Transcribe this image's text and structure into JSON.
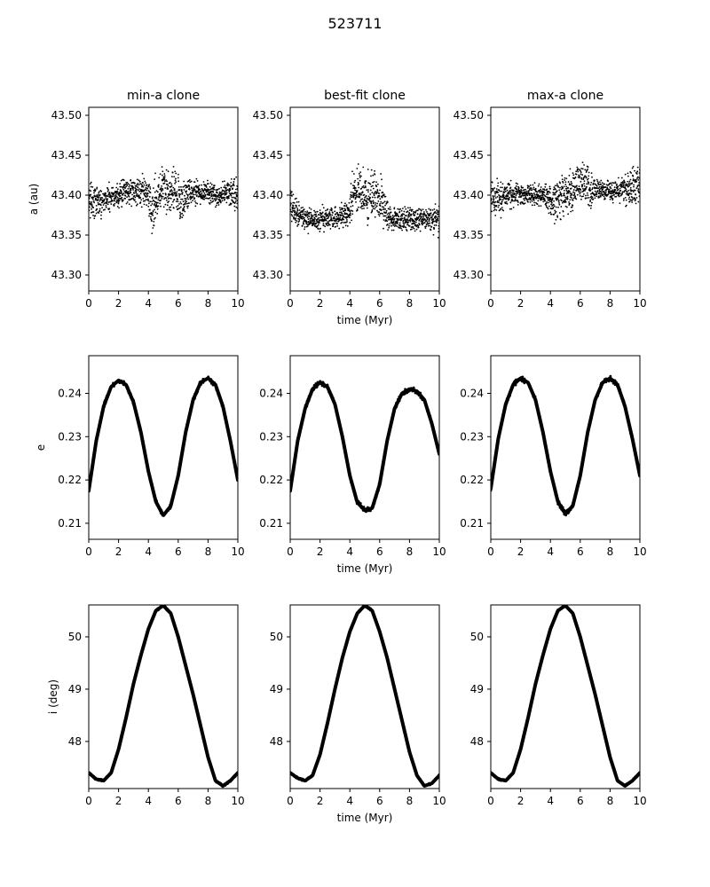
{
  "figure": {
    "title": "523711",
    "columns": [
      "min-a clone",
      "best-fit clone",
      "max-a clone"
    ],
    "xlabel": "time (Myr)",
    "ylabels": [
      "a (au)",
      "e",
      "i (deg)"
    ]
  },
  "colors": {
    "points": "#000000",
    "axes": "#000000",
    "background": "#ffffff"
  },
  "chart_data": [
    {
      "type": "scatter",
      "row": 0,
      "col": 0,
      "title": "min-a clone",
      "xlabel": "",
      "ylabel": "a (au)",
      "xlim": [
        0,
        10
      ],
      "ylim": [
        43.28,
        43.51
      ],
      "xticks": [
        0,
        2,
        4,
        6,
        8,
        10
      ],
      "yticks": [
        43.3,
        43.35,
        43.4,
        43.45,
        43.5
      ],
      "ytick_labels": [
        "43.30",
        "43.35",
        "43.40",
        "43.45",
        "43.50"
      ],
      "grid": false,
      "series": [
        {
          "x": [
            0,
            0.5,
            1,
            1.5,
            2,
            2.5,
            3,
            3.5,
            3.9,
            4.2,
            4.6,
            5.0,
            5.4,
            5.8,
            6.2,
            6.6,
            7,
            7.5,
            8,
            8.5,
            9,
            9.5,
            10
          ],
          "y": [
            43.395,
            43.39,
            43.395,
            43.398,
            43.4,
            43.405,
            43.405,
            43.405,
            43.4,
            43.38,
            43.4,
            43.41,
            43.4,
            43.41,
            43.39,
            43.4,
            43.405,
            43.405,
            43.403,
            43.4,
            43.402,
            43.405,
            43.405
          ],
          "spread": [
            0.03,
            0.03,
            0.025,
            0.025,
            0.025,
            0.025,
            0.025,
            0.025,
            0.03,
            0.04,
            0.04,
            0.04,
            0.04,
            0.04,
            0.04,
            0.03,
            0.025,
            0.02,
            0.02,
            0.02,
            0.02,
            0.025,
            0.03
          ]
        }
      ]
    },
    {
      "type": "scatter",
      "row": 0,
      "col": 1,
      "title": "best-fit clone",
      "xlabel": "time (Myr)",
      "ylabel": "",
      "xlim": [
        0,
        10
      ],
      "ylim": [
        43.28,
        43.51
      ],
      "xticks": [
        0,
        2,
        4,
        6,
        8,
        10
      ],
      "yticks": [
        43.3,
        43.35,
        43.4,
        43.45,
        43.5
      ],
      "ytick_labels": [
        "43.30",
        "43.35",
        "43.40",
        "43.45",
        "43.50"
      ],
      "grid": false,
      "series": [
        {
          "x": [
            0,
            0.5,
            1,
            1.5,
            2,
            2.5,
            3,
            3.5,
            3.9,
            4.2,
            4.6,
            5.0,
            5.4,
            5.8,
            6.2,
            6.6,
            7,
            7.5,
            8,
            8.5,
            9,
            9.5,
            10
          ],
          "y": [
            43.39,
            43.375,
            43.37,
            43.368,
            43.37,
            43.372,
            43.372,
            43.372,
            43.375,
            43.4,
            43.405,
            43.4,
            43.395,
            43.4,
            43.39,
            43.372,
            43.37,
            43.37,
            43.37,
            43.368,
            43.37,
            43.37,
            43.37
          ],
          "spread": [
            0.03,
            0.02,
            0.02,
            0.02,
            0.02,
            0.02,
            0.02,
            0.02,
            0.025,
            0.045,
            0.045,
            0.045,
            0.045,
            0.045,
            0.04,
            0.02,
            0.02,
            0.02,
            0.02,
            0.02,
            0.02,
            0.02,
            0.03
          ]
        }
      ]
    },
    {
      "type": "scatter",
      "row": 0,
      "col": 2,
      "title": "max-a clone",
      "xlabel": "",
      "ylabel": "",
      "xlim": [
        0,
        10
      ],
      "ylim": [
        43.28,
        43.51
      ],
      "xticks": [
        0,
        2,
        4,
        6,
        8,
        10
      ],
      "yticks": [
        43.3,
        43.35,
        43.4,
        43.45,
        43.5
      ],
      "ytick_labels": [
        "43.30",
        "43.35",
        "43.40",
        "43.45",
        "43.50"
      ],
      "grid": false,
      "series": [
        {
          "x": [
            0,
            0.5,
            1,
            1.5,
            2,
            2.5,
            3,
            3.5,
            3.9,
            4.2,
            4.6,
            5.0,
            5.4,
            5.8,
            6.2,
            6.6,
            7,
            7.5,
            8,
            8.5,
            9,
            9.5,
            10
          ],
          "y": [
            43.4,
            43.395,
            43.4,
            43.4,
            43.4,
            43.4,
            43.4,
            43.4,
            43.395,
            43.39,
            43.395,
            43.4,
            43.405,
            43.41,
            43.42,
            43.41,
            43.405,
            43.405,
            43.405,
            43.405,
            43.408,
            43.41,
            43.41
          ],
          "spread": [
            0.03,
            0.03,
            0.025,
            0.02,
            0.02,
            0.02,
            0.02,
            0.02,
            0.025,
            0.04,
            0.04,
            0.04,
            0.035,
            0.04,
            0.035,
            0.03,
            0.025,
            0.02,
            0.02,
            0.02,
            0.025,
            0.03,
            0.035
          ]
        }
      ]
    },
    {
      "type": "line",
      "row": 1,
      "col": 0,
      "title": "",
      "xlabel": "",
      "ylabel": "e",
      "xlim": [
        0,
        10
      ],
      "ylim": [
        0.2063,
        0.2487
      ],
      "xticks": [
        0,
        2,
        4,
        6,
        8,
        10
      ],
      "yticks": [
        0.21,
        0.22,
        0.23,
        0.24
      ],
      "ytick_labels": [
        "0.21",
        "0.22",
        "0.23",
        "0.24"
      ],
      "grid": false,
      "series": [
        {
          "x": [
            0,
            0.5,
            1,
            1.5,
            2,
            2.5,
            3,
            3.5,
            4,
            4.5,
            5,
            5.5,
            6,
            6.5,
            7,
            7.5,
            8,
            8.5,
            9,
            9.5,
            10
          ],
          "y": [
            0.2175,
            0.229,
            0.237,
            0.2415,
            0.243,
            0.242,
            0.238,
            0.231,
            0.222,
            0.215,
            0.2118,
            0.214,
            0.221,
            0.231,
            0.2385,
            0.2425,
            0.2435,
            0.242,
            0.237,
            0.229,
            0.22
          ],
          "band": 0.0006
        }
      ]
    },
    {
      "type": "line",
      "row": 1,
      "col": 1,
      "title": "",
      "xlabel": "time (Myr)",
      "ylabel": "",
      "xlim": [
        0,
        10
      ],
      "ylim": [
        0.2063,
        0.2487
      ],
      "xticks": [
        0,
        2,
        4,
        6,
        8,
        10
      ],
      "yticks": [
        0.21,
        0.22,
        0.23,
        0.24
      ],
      "ytick_labels": [
        "0.21",
        "0.22",
        "0.23",
        "0.24"
      ],
      "grid": false,
      "series": [
        {
          "x": [
            0,
            0.5,
            1,
            1.5,
            2,
            2.5,
            3,
            3.5,
            4,
            4.5,
            5,
            5.5,
            6,
            6.5,
            7,
            7.5,
            8,
            8.5,
            9,
            9.5,
            10
          ],
          "y": [
            0.2175,
            0.229,
            0.2365,
            0.241,
            0.2425,
            0.2415,
            0.2375,
            0.23,
            0.221,
            0.2148,
            0.213,
            0.2135,
            0.219,
            0.229,
            0.2365,
            0.24,
            0.241,
            0.2405,
            0.2385,
            0.233,
            0.226
          ],
          "band": 0.0006
        }
      ]
    },
    {
      "type": "line",
      "row": 1,
      "col": 2,
      "title": "",
      "xlabel": "",
      "ylabel": "",
      "xlim": [
        0,
        10
      ],
      "ylim": [
        0.2063,
        0.2487
      ],
      "xticks": [
        0,
        2,
        4,
        6,
        8,
        10
      ],
      "yticks": [
        0.21,
        0.22,
        0.23,
        0.24
      ],
      "ytick_labels": [
        "0.21",
        "0.22",
        "0.23",
        "0.24"
      ],
      "grid": false,
      "series": [
        {
          "x": [
            0,
            0.5,
            1,
            1.5,
            2,
            2.5,
            3,
            3.5,
            4,
            4.5,
            5,
            5.5,
            6,
            6.5,
            7,
            7.5,
            8,
            8.5,
            9,
            9.5,
            10
          ],
          "y": [
            0.218,
            0.2295,
            0.2375,
            0.242,
            0.2435,
            0.2425,
            0.2385,
            0.231,
            0.222,
            0.215,
            0.2122,
            0.214,
            0.221,
            0.231,
            0.2385,
            0.2425,
            0.2435,
            0.242,
            0.237,
            0.2295,
            0.221
          ],
          "band": 0.0006
        }
      ]
    },
    {
      "type": "line",
      "row": 2,
      "col": 0,
      "title": "",
      "xlabel": "",
      "ylabel": "i (deg)",
      "xlim": [
        0,
        10
      ],
      "ylim": [
        47.1,
        50.61
      ],
      "xticks": [
        0,
        2,
        4,
        6,
        8,
        10
      ],
      "yticks": [
        48,
        49,
        50
      ],
      "ytick_labels": [
        "48",
        "49",
        "50"
      ],
      "grid": false,
      "series": [
        {
          "x": [
            0,
            0.5,
            1,
            1.5,
            2,
            2.5,
            3,
            3.5,
            4,
            4.5,
            5,
            5.5,
            6,
            6.5,
            7,
            7.5,
            8,
            8.5,
            9,
            9.5,
            10
          ],
          "y": [
            47.4,
            47.28,
            47.25,
            47.4,
            47.85,
            48.45,
            49.1,
            49.65,
            50.15,
            50.5,
            50.6,
            50.45,
            50.0,
            49.45,
            48.9,
            48.3,
            47.7,
            47.25,
            47.15,
            47.25,
            47.4
          ],
          "band": 0.02
        }
      ]
    },
    {
      "type": "line",
      "row": 2,
      "col": 1,
      "title": "",
      "xlabel": "time (Myr)",
      "ylabel": "",
      "xlim": [
        0,
        10
      ],
      "ylim": [
        47.1,
        50.61
      ],
      "xticks": [
        0,
        2,
        4,
        6,
        8,
        10
      ],
      "yticks": [
        48,
        49,
        50
      ],
      "ytick_labels": [
        "48",
        "49",
        "50"
      ],
      "grid": false,
      "series": [
        {
          "x": [
            0,
            0.5,
            1,
            1.5,
            2,
            2.5,
            3,
            3.5,
            4,
            4.5,
            5,
            5.5,
            6,
            6.5,
            7,
            7.5,
            8,
            8.5,
            9,
            9.5,
            10
          ],
          "y": [
            47.4,
            47.3,
            47.25,
            47.35,
            47.75,
            48.35,
            49.0,
            49.6,
            50.1,
            50.45,
            50.6,
            50.5,
            50.1,
            49.6,
            49.0,
            48.4,
            47.8,
            47.35,
            47.15,
            47.2,
            47.35
          ],
          "band": 0.02
        }
      ]
    },
    {
      "type": "line",
      "row": 2,
      "col": 2,
      "title": "",
      "xlabel": "",
      "ylabel": "",
      "xlim": [
        0,
        10
      ],
      "ylim": [
        47.1,
        50.61
      ],
      "xticks": [
        0,
        2,
        4,
        6,
        8,
        10
      ],
      "yticks": [
        48,
        49,
        50
      ],
      "ytick_labels": [
        "48",
        "49",
        "50"
      ],
      "grid": false,
      "series": [
        {
          "x": [
            0,
            0.5,
            1,
            1.5,
            2,
            2.5,
            3,
            3.5,
            4,
            4.5,
            5,
            5.5,
            6,
            6.5,
            7,
            7.5,
            8,
            8.5,
            9,
            9.5,
            10
          ],
          "y": [
            47.4,
            47.28,
            47.25,
            47.4,
            47.85,
            48.45,
            49.1,
            49.65,
            50.15,
            50.5,
            50.6,
            50.45,
            50.0,
            49.45,
            48.9,
            48.3,
            47.7,
            47.25,
            47.15,
            47.25,
            47.4
          ],
          "band": 0.02
        }
      ]
    }
  ]
}
